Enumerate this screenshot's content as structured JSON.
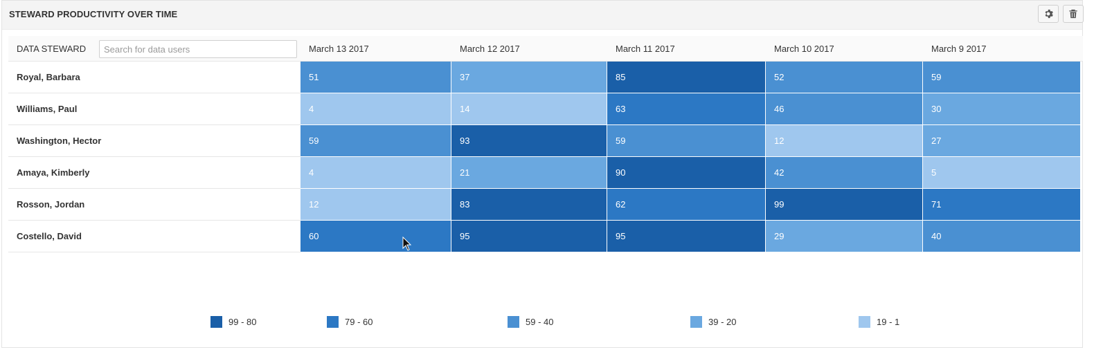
{
  "panel": {
    "title": "STEWARD PRODUCTIVITY OVER TIME",
    "settings_icon": "gear-icon",
    "delete_icon": "trash-icon"
  },
  "table": {
    "steward_header": "DATA STEWARD",
    "search_placeholder": "Search for data users",
    "dates": [
      "March 13 2017",
      "March 12 2017",
      "March 11 2017",
      "March 10 2017",
      "March 9 2017"
    ],
    "rows": [
      {
        "name": "Royal, Barbara",
        "values": [
          51,
          37,
          85,
          52,
          59
        ]
      },
      {
        "name": "Williams, Paul",
        "values": [
          4,
          14,
          63,
          46,
          30
        ]
      },
      {
        "name": "Washington, Hector",
        "values": [
          59,
          93,
          59,
          12,
          27
        ]
      },
      {
        "name": "Amaya, Kimberly",
        "values": [
          4,
          21,
          90,
          42,
          5
        ]
      },
      {
        "name": "Rosson, Jordan",
        "values": [
          12,
          83,
          62,
          99,
          71
        ]
      },
      {
        "name": "Costello, David",
        "values": [
          60,
          95,
          95,
          29,
          40
        ]
      }
    ]
  },
  "legend": [
    {
      "label": "99 - 80",
      "color": "#1a5fa8"
    },
    {
      "label": "79 - 60",
      "color": "#2c78c4"
    },
    {
      "label": "59 - 40",
      "color": "#4a90d2"
    },
    {
      "label": "39 - 20",
      "color": "#6aa8e0"
    },
    {
      "label": "19 - 1",
      "color": "#9fc7ee"
    }
  ]
}
